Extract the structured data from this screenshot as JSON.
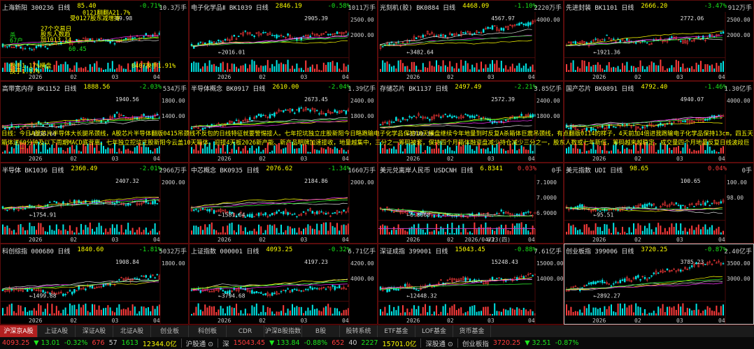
{
  "panels": [
    {
      "name": "上海新阳 300236 日线",
      "price": "85.40",
      "change": "-0.71%",
      "dir": "dn",
      "vol": "10.3万手",
      "labels": {
        "hi": "89.98"
      },
      "color": "#3a7"
    },
    {
      "name": "电子化学品Ⅱ BK1039 日线",
      "price": "2846.19",
      "change": "-0.58%",
      "dir": "dn",
      "vol": "1011万手",
      "labels": {
        "hi": "2905.39",
        "lo": "2016.01"
      },
      "axis": [
        "2500.00",
        "2000.00"
      ]
    },
    {
      "name": "光刻机(胶) BK0884 日线",
      "price": "4468.09",
      "change": "-1.10%",
      "dir": "dn",
      "vol": "2220万手",
      "labels": {
        "hi": "4567.97",
        "lo": "3482.64"
      },
      "axis": [
        "4000.00"
      ]
    },
    {
      "name": "先进封装 BK1101 日线",
      "price": "2666.20",
      "change": "-3.47%",
      "dir": "dn",
      "vol": "912万手",
      "labels": {
        "hi": "2772.06",
        "lo": "1921.36"
      },
      "axis": [
        "2500.00",
        "2000.00"
      ]
    },
    {
      "name": "高带宽内存 BK1152 日线",
      "price": "1888.56",
      "change": "-2.03%",
      "dir": "dn",
      "vol": "534万手",
      "labels": {
        "hi": "1940.56",
        "lo": "1230.60"
      },
      "axis": [
        "1800.00",
        "1400.00"
      ]
    },
    {
      "name": "半导体概念 BK0917 日线",
      "price": "2610.00",
      "change": "-2.04%",
      "dir": "dn",
      "vol": "1.39亿手",
      "labels": {
        "hi": "2673.45",
        "lo": ""
      },
      "axis": [
        "2400.00",
        "1800.00"
      ]
    },
    {
      "name": "存储芯片 BK1137 日线",
      "price": "2497.49",
      "change": "-2.21%",
      "dir": "dn",
      "vol": "3.85亿手",
      "labels": {
        "hi": "2572.39",
        "lo": "1799.16"
      },
      "axis": [
        "2400.00",
        "1800.00"
      ]
    },
    {
      "name": "国产芯片 BK0891 日线",
      "price": "4792.40",
      "change": "-1.46%",
      "dir": "dn",
      "vol": "1.30亿手",
      "labels": {
        "hi": "4940.07",
        "lo": ""
      },
      "axis": [
        "4000.00"
      ]
    },
    {
      "name": "半导体 BK1036 日线",
      "price": "2360.49",
      "change": "-2.01%",
      "dir": "dn",
      "vol": "2966万手",
      "labels": {
        "hi": "2407.32",
        "lo": "1754.91"
      },
      "axis": [
        "2000.00"
      ]
    },
    {
      "name": "中芯概念 BK0935 日线",
      "price": "2076.62",
      "change": "-1.34%",
      "dir": "dn",
      "vol": "1660万手",
      "labels": {
        "hi": "2184.86",
        "lo": "1581.64"
      },
      "axis": [
        "2000.00"
      ]
    },
    {
      "name": "美元兑离岸人民币 USDCNH 日线",
      "price": "6.8341",
      "change": "0.03%",
      "dir": "up",
      "vol": "0手",
      "labels": {
        "hi": "",
        "lo": "6.8060"
      },
      "axis": [
        "7.1000",
        "7.0000",
        "6.9000"
      ]
    },
    {
      "name": "美元指数 UDI 日线",
      "price": "98.65",
      "change": "0.04%",
      "dir": "up",
      "vol": "0手",
      "labels": {
        "hi": "100.65",
        "lo": "95.51"
      },
      "axis": [
        "100.00",
        "98.00"
      ]
    },
    {
      "name": "科创综指 000680 日线",
      "price": "1840.60",
      "change": "-1.81%",
      "dir": "dn",
      "vol": "5032万手",
      "labels": {
        "hi": "1908.84",
        "lo": "1499.88"
      },
      "axis": [
        "1800.00"
      ]
    },
    {
      "name": "上证指数 000001 日线",
      "price": "4093.25",
      "change": "-0.32%",
      "dir": "dn",
      "vol": "6.71亿手",
      "labels": {
        "hi": "4197.23",
        "lo": "3794.68"
      },
      "axis": [
        "4200.00",
        "4000.00"
      ]
    },
    {
      "name": "深证成指 399001 日线",
      "price": "15043.45",
      "change": "-0.88%",
      "dir": "dn",
      "vol": "7.61亿手",
      "labels": {
        "hi": "15248.43",
        "lo": "12448.32"
      },
      "axis": [
        "15000.00",
        "14000.00"
      ]
    },
    {
      "name": "创业板指 399006 日线",
      "price": "3720.25",
      "change": "-0.87%",
      "dir": "dn",
      "vol": "2.40亿手",
      "labels": {
        "hi": "3785.23",
        "lo": "2892.27"
      },
      "axis": [
        "3500.00",
        "3000.00"
      ]
    }
  ],
  "xaxis": [
    "2026",
    "02",
    "03",
    "04"
  ],
  "date_tag": "2026/04/23(四)",
  "annotation": "日线：今日A股芯片半导体大长腿吊颈线，A股芯片半导体翻版0415吊颈线不反包的日线特征就要警惕接人。七年挖坑独立庄股新阳今日略跑输电子化学品保持10天横盘继续今年地量到时反复A杀箱体巨震吊颈线，有点翻版0114的样子，4天前加4倍进我跑输电子化学品保持13cm，四五天箱体送60分钟及以下周期MACD底背离。七年独立挖坑庄股新阳今云盖10天箱体，迎接4天板2026新产能、新产品明牌加速接收，地量越集中，三分之一筹码被套，保持四个月箱体融资盘减少持仓减少三分之一，股东人数或七年新低，筹码越来越稳定，成交量四个月地量反复日线波段巨震不放量。",
  "overlays": {
    "tl1": "0121翻翻A21.7%",
    "tl2": "受0127股东减增持",
    "tl3": "27个交易日",
    "tl4": "股东人数趋",
    "tl5": "加1013.14",
    "tl6": "换手1.17%横盘",
    "tl7": "换手1.17%",
    "tl8": "0407换手1.91%",
    "tl9": "60.45",
    "tl10": "杀",
    "tl11": "67户"
  },
  "tabs": [
    "沪深京A股",
    "上证A股",
    "深证A股",
    "北证A股",
    "创业板",
    "科创板",
    "CDR",
    "沪深B股指数",
    "B股",
    "股转系统",
    "ETF基金",
    "LOF基金",
    "货币基金"
  ],
  "status": [
    {
      "t": "4093.25",
      "c": "#ff3b3b"
    },
    {
      "t": "▼ 13.01",
      "c": "#1be81b"
    },
    {
      "t": "-0.32%",
      "c": "#1be81b"
    },
    {
      "t": "676",
      "c": "#ff3b3b"
    },
    {
      "t": "57",
      "c": "#ccc"
    },
    {
      "t": "1613",
      "c": "#1be81b"
    },
    {
      "t": "12344.0亿",
      "c": "#ffff00"
    },
    {
      "t": "沪股通 ⊙",
      "c": "#ccc"
    },
    {
      "t": "深",
      "c": "#ccc"
    },
    {
      "t": "15043.45",
      "c": "#ff3b3b"
    },
    {
      "t": "▼ 133.84",
      "c": "#1be81b"
    },
    {
      "t": "-0.88%",
      "c": "#1be81b"
    },
    {
      "t": "652",
      "c": "#ff3b3b"
    },
    {
      "t": "40",
      "c": "#ccc"
    },
    {
      "t": "2227",
      "c": "#1be81b"
    },
    {
      "t": "15701.0亿",
      "c": "#ffff00"
    },
    {
      "t": "深股通 ⊙",
      "c": "#ccc"
    },
    {
      "t": "创业板指",
      "c": "#ccc"
    },
    {
      "t": "3720.25",
      "c": "#ff3b3b"
    },
    {
      "t": "▼ 32.51",
      "c": "#1be81b"
    },
    {
      "t": "-0.87%",
      "c": "#1be81b"
    }
  ]
}
